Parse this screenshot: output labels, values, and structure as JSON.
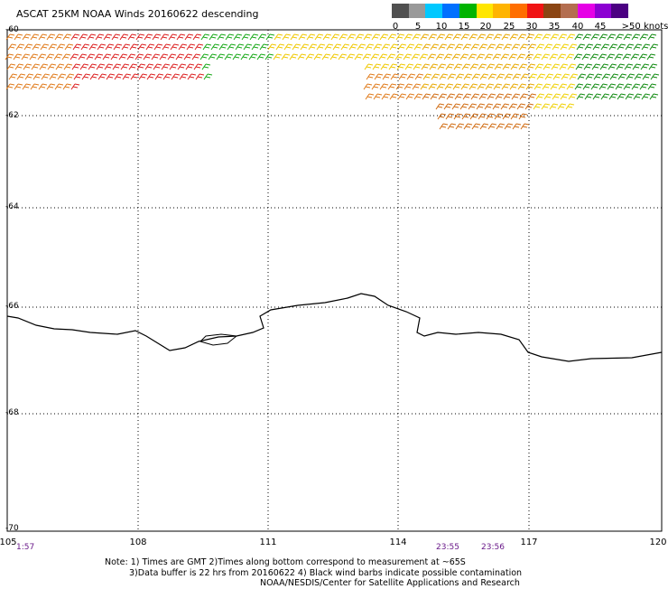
{
  "title": "ASCAT 25KM NOAA Winds 20160622 descending",
  "legend": {
    "colors": [
      "#505050",
      "#999999",
      "#00c8ff",
      "#0070ff",
      "#00b400",
      "#ffe600",
      "#ffb400",
      "#ff6e00",
      "#f01414",
      "#8b4513",
      "#b46e50",
      "#e600e6",
      "#8c00d2",
      "#4b0082"
    ],
    "labels": [
      "0",
      "5",
      "10",
      "15",
      "20",
      "25",
      "30",
      "35",
      "40",
      "45",
      ">50 knots"
    ]
  },
  "map": {
    "lat_labels": [
      "-60",
      "-62",
      "-64",
      "-66",
      "-68",
      "-70"
    ],
    "lon_labels": [
      "105",
      "108",
      "111",
      "114",
      "117",
      "120"
    ],
    "lat_range": [
      -70,
      -60
    ],
    "lon_range": [
      105,
      120
    ],
    "coastline_color": "#000000",
    "grid": "dotted"
  },
  "times": [
    {
      "text": "1:57"
    },
    {
      "text": "23:55"
    },
    {
      "text": "23:56"
    }
  ],
  "notes": {
    "line1": "Note: 1) Times are GMT 2)Times along bottom correspond to measurement at ~65S",
    "line2": "3)Data buffer is 22 hrs from 20160622 4) Black wind barbs indicate possible contamination",
    "line3": "NOAA/NESDIS/Center for Satellite Applications and Research"
  }
}
